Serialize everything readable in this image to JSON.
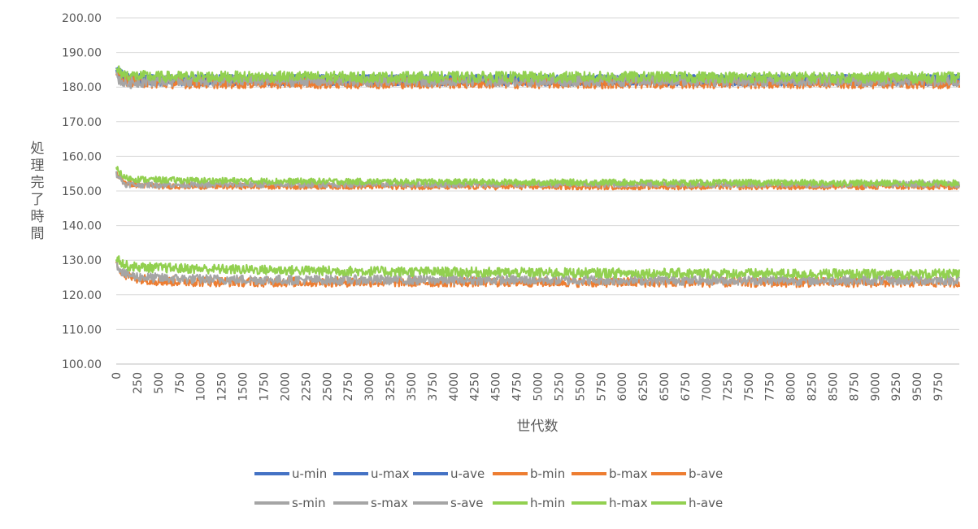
{
  "chart_data": {
    "type": "line",
    "title": "",
    "xlabel": "世代数",
    "ylabel": "処理完了時間",
    "ylim": [
      100,
      200
    ],
    "xlim": [
      0,
      10000
    ],
    "grid": true,
    "legend_position": "bottom",
    "y_ticks": [
      "100.00",
      "110.00",
      "120.00",
      "130.00",
      "140.00",
      "150.00",
      "160.00",
      "170.00",
      "180.00",
      "190.00",
      "200.00"
    ],
    "x_ticks": [
      "0",
      "250",
      "500",
      "750",
      "1000",
      "1250",
      "1500",
      "1750",
      "2000",
      "2250",
      "2500",
      "2750",
      "3000",
      "3250",
      "3500",
      "3750",
      "4000",
      "4250",
      "4500",
      "4750",
      "5000",
      "5250",
      "5500",
      "5750",
      "6000",
      "6250",
      "6500",
      "6750",
      "7000",
      "7250",
      "7500",
      "7750",
      "8000",
      "8250",
      "8500",
      "8750",
      "9000",
      "9250",
      "9500",
      "9750"
    ],
    "x": [
      0,
      100,
      250,
      500,
      1000,
      2000,
      3000,
      4000,
      5000,
      6000,
      7000,
      8000,
      9000,
      10000
    ],
    "series": [
      {
        "name": "u-min",
        "color": "#4472C4",
        "values": [
          184.5,
          182.8,
          182.3,
          182.0,
          182.0,
          182.0,
          182.0,
          182.0,
          182.0,
          182.0,
          182.0,
          182.0,
          182.0,
          182.0
        ]
      },
      {
        "name": "u-max",
        "color": "#4472C4",
        "values": [
          184.5,
          182.8,
          182.3,
          182.0,
          182.0,
          182.0,
          182.0,
          182.0,
          182.0,
          182.0,
          182.0,
          182.0,
          182.0,
          182.0
        ]
      },
      {
        "name": "u-ave",
        "color": "#4472C4",
        "values": [
          184.5,
          182.8,
          182.3,
          182.0,
          182.0,
          182.0,
          182.0,
          182.0,
          182.0,
          182.0,
          182.0,
          182.0,
          182.0,
          182.0
        ]
      },
      {
        "name": "b-min",
        "color": "#ED7D31",
        "values": [
          184.0,
          182.0,
          181.5,
          181.2,
          181.2,
          181.2,
          181.2,
          181.2,
          181.2,
          181.2,
          181.2,
          181.2,
          181.2,
          181.2
        ]
      },
      {
        "name": "b-max",
        "color": "#ED7D31",
        "values": [
          155.0,
          152.5,
          151.8,
          151.5,
          151.4,
          151.4,
          151.4,
          151.3,
          151.3,
          151.3,
          151.3,
          151.3,
          151.3,
          151.3
        ]
      },
      {
        "name": "b-ave",
        "color": "#ED7D31",
        "values": [
          129.0,
          125.5,
          124.8,
          124.0,
          123.8,
          123.7,
          123.7,
          123.7,
          123.7,
          123.6,
          123.6,
          123.6,
          123.6,
          123.6
        ]
      },
      {
        "name": "s-min",
        "color": "#A5A5A5",
        "values": [
          183.0,
          181.0,
          181.5,
          181.8,
          181.8,
          181.8,
          181.8,
          181.8,
          181.8,
          181.8,
          181.8,
          181.8,
          181.8,
          181.8
        ]
      },
      {
        "name": "s-max",
        "color": "#A5A5A5",
        "values": [
          155.0,
          152.0,
          151.8,
          151.8,
          151.8,
          151.9,
          151.9,
          151.9,
          151.9,
          151.9,
          151.9,
          151.9,
          151.9,
          151.9
        ]
      },
      {
        "name": "s-ave",
        "color": "#A5A5A5",
        "values": [
          129.0,
          126.0,
          125.2,
          124.8,
          124.5,
          124.3,
          124.3,
          124.3,
          124.3,
          124.2,
          124.2,
          124.2,
          124.2,
          124.2
        ]
      },
      {
        "name": "h-min",
        "color": "#92D050",
        "values": [
          185.0,
          183.6,
          183.2,
          183.0,
          183.0,
          183.0,
          182.9,
          182.9,
          182.9,
          182.9,
          182.9,
          182.8,
          182.8,
          182.8
        ]
      },
      {
        "name": "h-max",
        "color": "#92D050",
        "values": [
          156.5,
          153.8,
          153.4,
          153.2,
          153.0,
          152.8,
          152.7,
          152.6,
          152.5,
          152.5,
          152.4,
          152.4,
          152.3,
          152.3
        ]
      },
      {
        "name": "h-ave",
        "color": "#92D050",
        "values": [
          131.0,
          128.5,
          128.0,
          127.8,
          127.5,
          127.1,
          126.8,
          126.6,
          126.4,
          126.3,
          126.2,
          126.1,
          126.0,
          126.0
        ]
      }
    ]
  }
}
